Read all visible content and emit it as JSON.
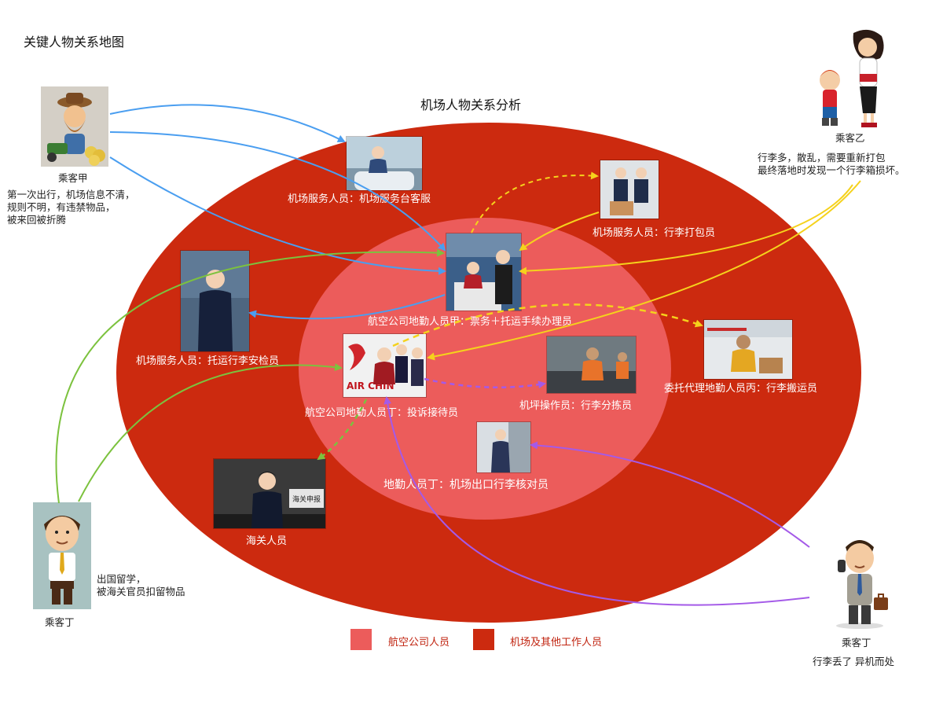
{
  "page_title": "关键人物关系地图",
  "center_title": "机场人物关系分析",
  "colors": {
    "outer_ellipse": "#cc2a0f",
    "inner_ellipse": "#ec5c5b",
    "blue_arrow": "#4a9ef0",
    "yellow_arrow": "#f5d21c",
    "green_arrow": "#7cc23e",
    "purple_arrow": "#a45ae8"
  },
  "passengers": {
    "jia": {
      "name": "乘客甲",
      "desc": [
        "第一次出行，机场信息不清，",
        "规则不明，有违禁物品，",
        "被来回被折腾"
      ]
    },
    "yi": {
      "name": "乘客乙",
      "desc": [
        "行李多，散乱，需要重新打包",
        "最终落地时发现一个行李箱损坏。"
      ]
    },
    "ding_left": {
      "name": "乘客丁",
      "desc": [
        "出国留学，",
        "被海关官员扣留物品"
      ]
    },
    "ding_right": {
      "name": "乘客丁",
      "desc": [
        "行李丢了 异机而处"
      ]
    }
  },
  "staff": {
    "service_desk": "机场服务人员：机场服务台客服",
    "packing": "机场服务人员：行李打包员",
    "checkin": "航空公司地勤人员甲：票务＋托运手续办理员",
    "security": "机场服务人员：托运行李安检员",
    "complaint": "航空公司地勤人员丁：投诉接待员",
    "sorting": "机坪操作员：行李分拣员",
    "porter": "委托代理地勤人员丙：行李搬运员",
    "exit_check": "地勤人员丁：机场出口行李核对员",
    "customs": "海关人员"
  },
  "legend": {
    "airline": "航空公司人员",
    "airport": "机场及其他工作人员"
  }
}
